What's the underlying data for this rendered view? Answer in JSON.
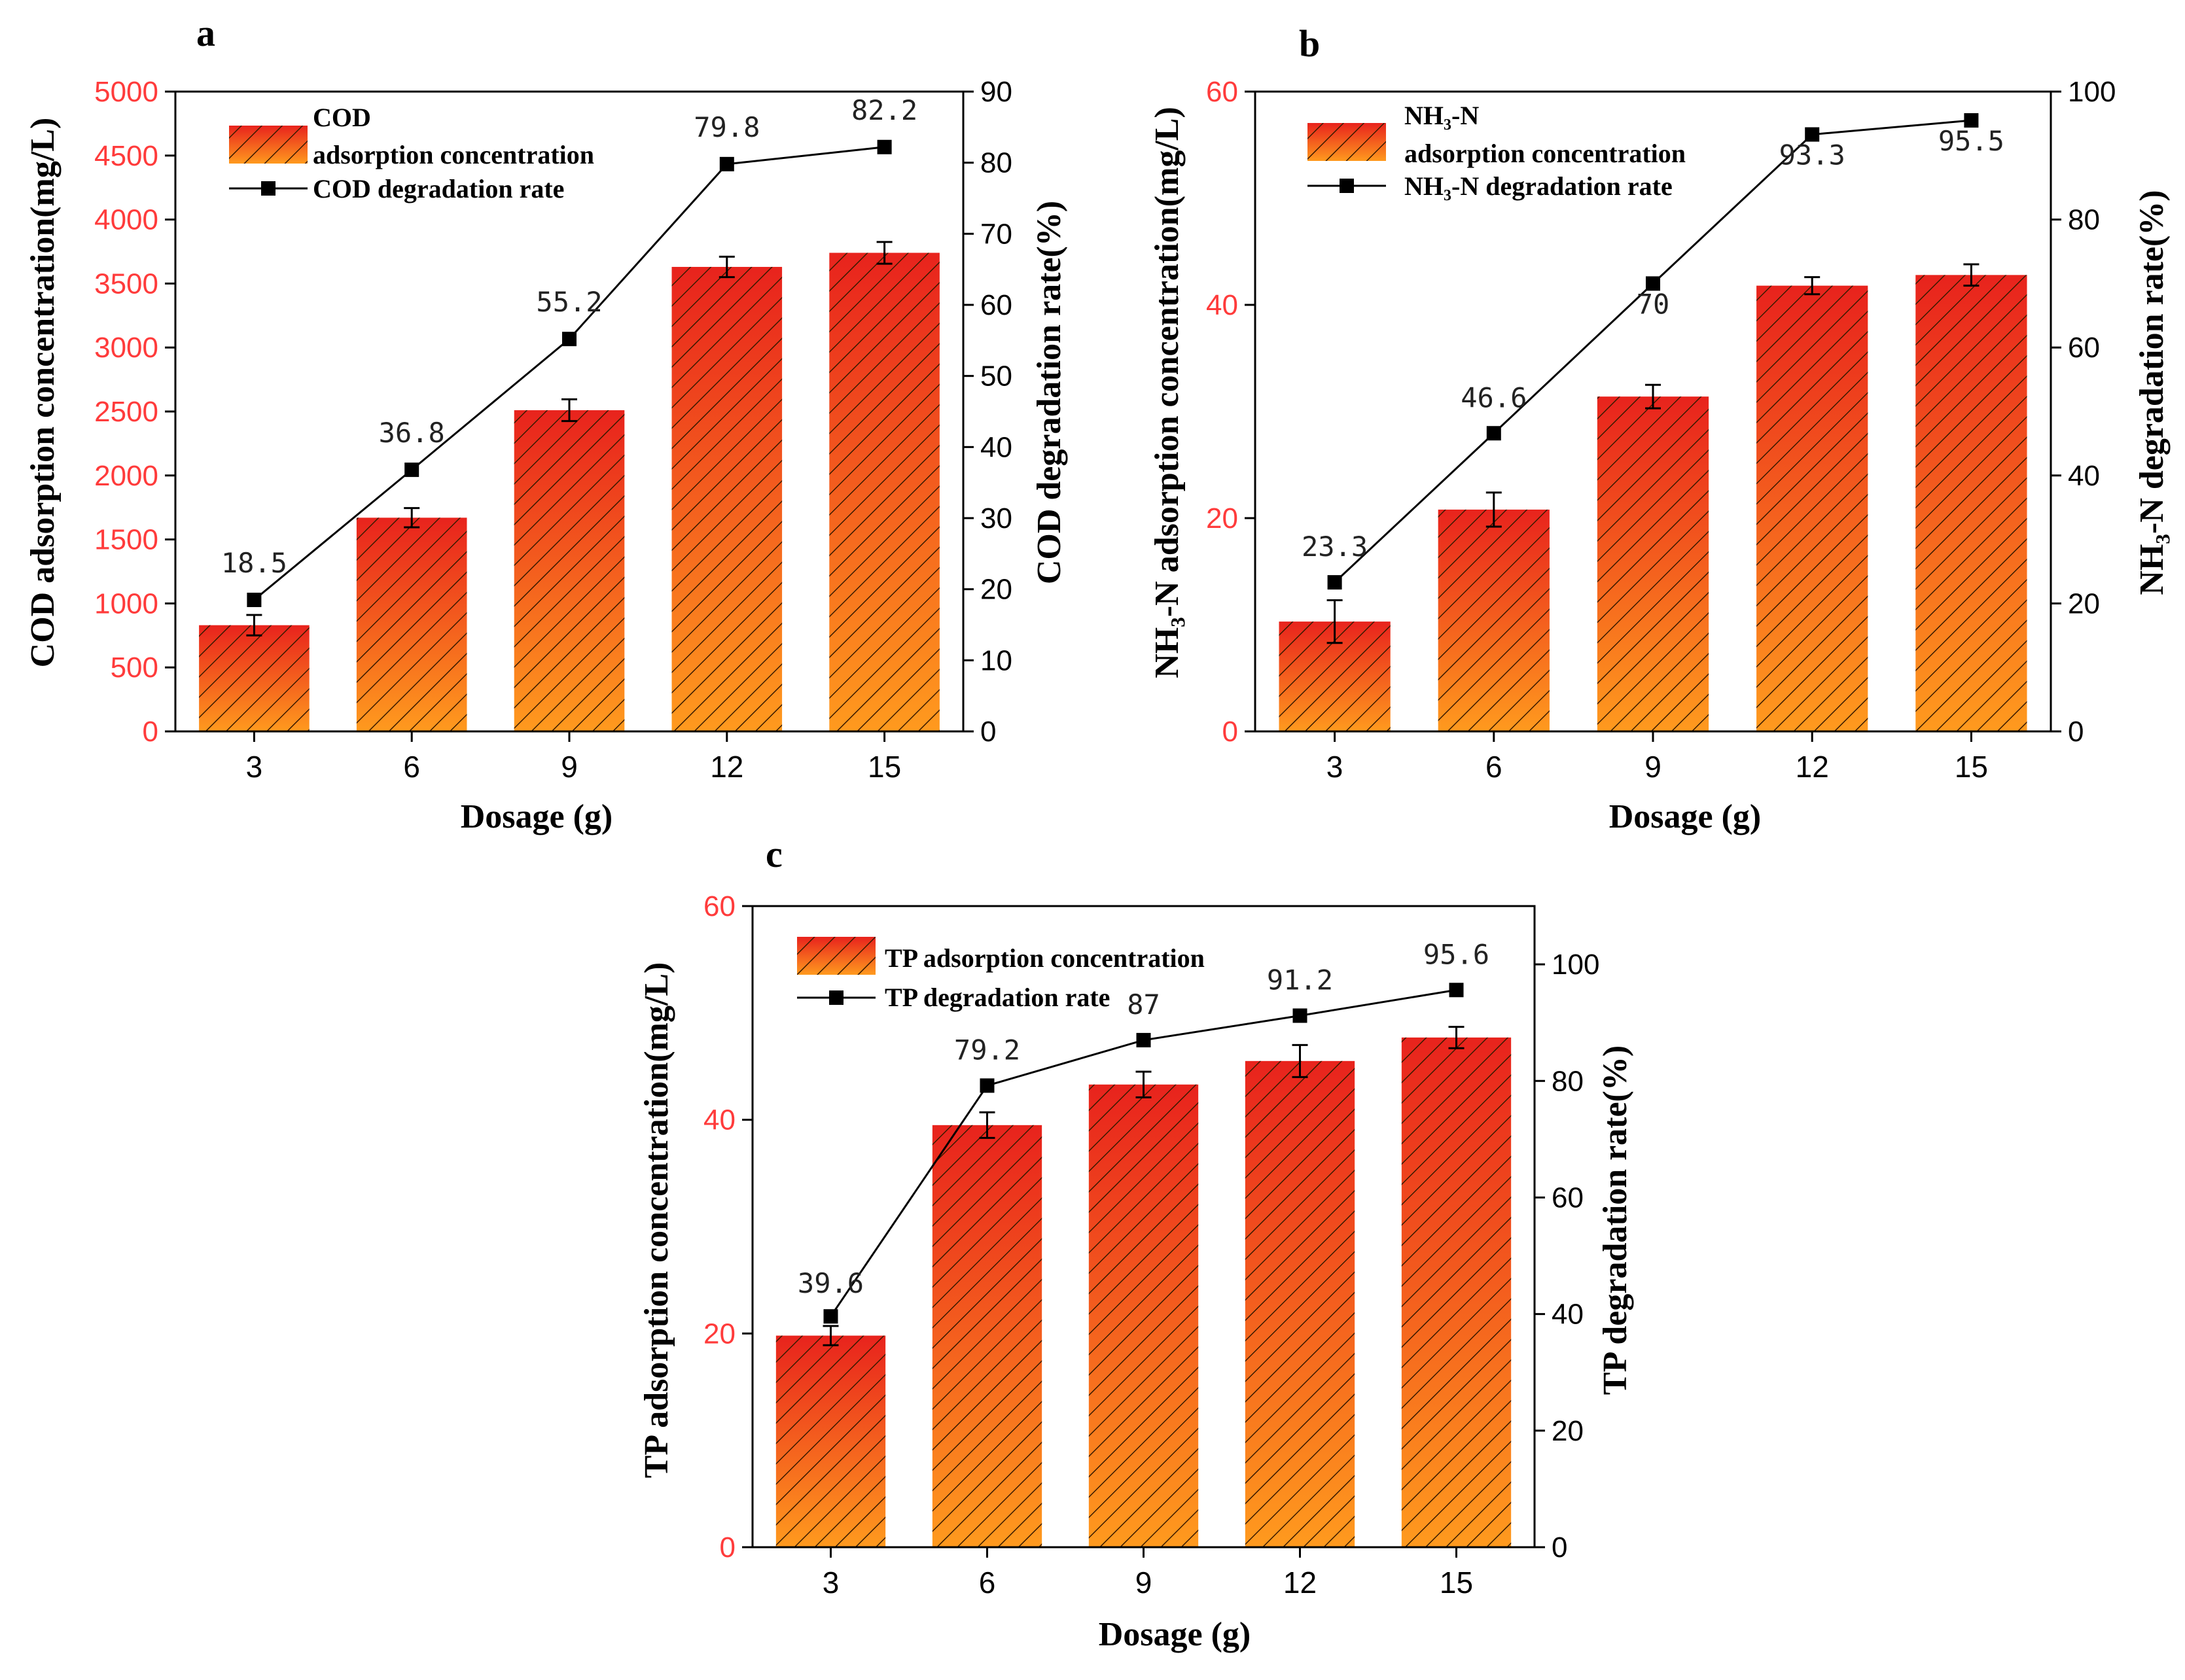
{
  "colors": {
    "left_axis": "#ff3b3b",
    "bar_top": "#e8231d",
    "bar_bottom": "#ff9a1e",
    "hatch": "#3a1a00",
    "line": "#000000"
  },
  "chart_data": [
    {
      "panel": "a",
      "type": "bar",
      "categories": [
        "3",
        "6",
        "9",
        "12",
        "15"
      ],
      "xlabel": "Dosage (g)",
      "ylabel_left": "COD adsorption concentration(mg/L)",
      "ylabel_right": "COD degradation rate(%)",
      "ylim_left": [
        0,
        5000
      ],
      "yticks_left": [
        0,
        500,
        1000,
        1500,
        2000,
        2500,
        3000,
        3500,
        4000,
        4500,
        5000
      ],
      "ylim_right": [
        0,
        90
      ],
      "yticks_right": [
        0,
        10,
        20,
        30,
        40,
        50,
        60,
        70,
        80,
        90
      ],
      "bar_series": {
        "name": "COD adsorption concentration",
        "legend_lines": [
          "COD",
          "adsorption concentration"
        ],
        "values": [
          830,
          1670,
          2510,
          3630,
          3740
        ],
        "errors": [
          80,
          75,
          85,
          80,
          85
        ]
      },
      "line_series": {
        "name": "COD degradation rate",
        "legend_lines": [
          "COD degradation rate"
        ],
        "values": [
          18.5,
          36.8,
          55.2,
          79.8,
          82.2
        ],
        "labels": [
          "18.5",
          "36.8",
          "55.2",
          "79.8",
          "82.2"
        ]
      }
    },
    {
      "panel": "b",
      "type": "bar",
      "categories": [
        "3",
        "6",
        "9",
        "12",
        "15"
      ],
      "xlabel": "Dosage (g)",
      "ylabel_left": "NH₃-N adsorption concentration(mg/L)",
      "ylabel_right": "NH₃-N degradation rate(%)",
      "ylim_left": [
        0,
        60
      ],
      "yticks_left": [
        0,
        20,
        40,
        60
      ],
      "ylim_right": [
        0,
        100
      ],
      "yticks_right": [
        0,
        20,
        40,
        60,
        80,
        100
      ],
      "bar_series": {
        "name": "NH₃-N adsorption concentration",
        "legend_lines": [
          "NH₃-N",
          "adsorption concentration"
        ],
        "values": [
          10.3,
          20.8,
          31.4,
          41.8,
          42.8
        ],
        "errors": [
          2.0,
          1.6,
          1.1,
          0.8,
          1.0
        ]
      },
      "line_series": {
        "name": "NH₃-N degradation rate",
        "legend_lines": [
          "NH₃-N degradation rate"
        ],
        "values": [
          23.3,
          46.6,
          70,
          93.3,
          95.5
        ],
        "labels": [
          "23.3",
          "46.6",
          "70",
          "93.3",
          "95.5"
        ]
      }
    },
    {
      "panel": "c",
      "type": "bar",
      "categories": [
        "3",
        "6",
        "9",
        "12",
        "15"
      ],
      "xlabel": "Dosage (g)",
      "ylabel_left": "TP adsorption concentration(mg/L)",
      "ylabel_right": "TP degradation rate(%)",
      "ylim_left": [
        0,
        60
      ],
      "yticks_left": [
        0,
        20,
        40,
        60
      ],
      "ylim_right": [
        0,
        110
      ],
      "yticks_right": [
        0,
        20,
        40,
        60,
        80,
        100
      ],
      "bar_series": {
        "name": "TP adsorption concentration",
        "legend_lines": [
          "TP adsorption concentration"
        ],
        "values": [
          19.8,
          39.5,
          43.3,
          45.5,
          47.7
        ],
        "errors": [
          0.9,
          1.2,
          1.2,
          1.5,
          1.0
        ]
      },
      "line_series": {
        "name": "TP degradation rate",
        "legend_lines": [
          "TP degradation rate"
        ],
        "values": [
          39.6,
          79.2,
          87,
          91.2,
          95.6
        ],
        "labels": [
          "39.6",
          "79.2",
          "87",
          "91.2",
          "95.6"
        ]
      }
    }
  ]
}
